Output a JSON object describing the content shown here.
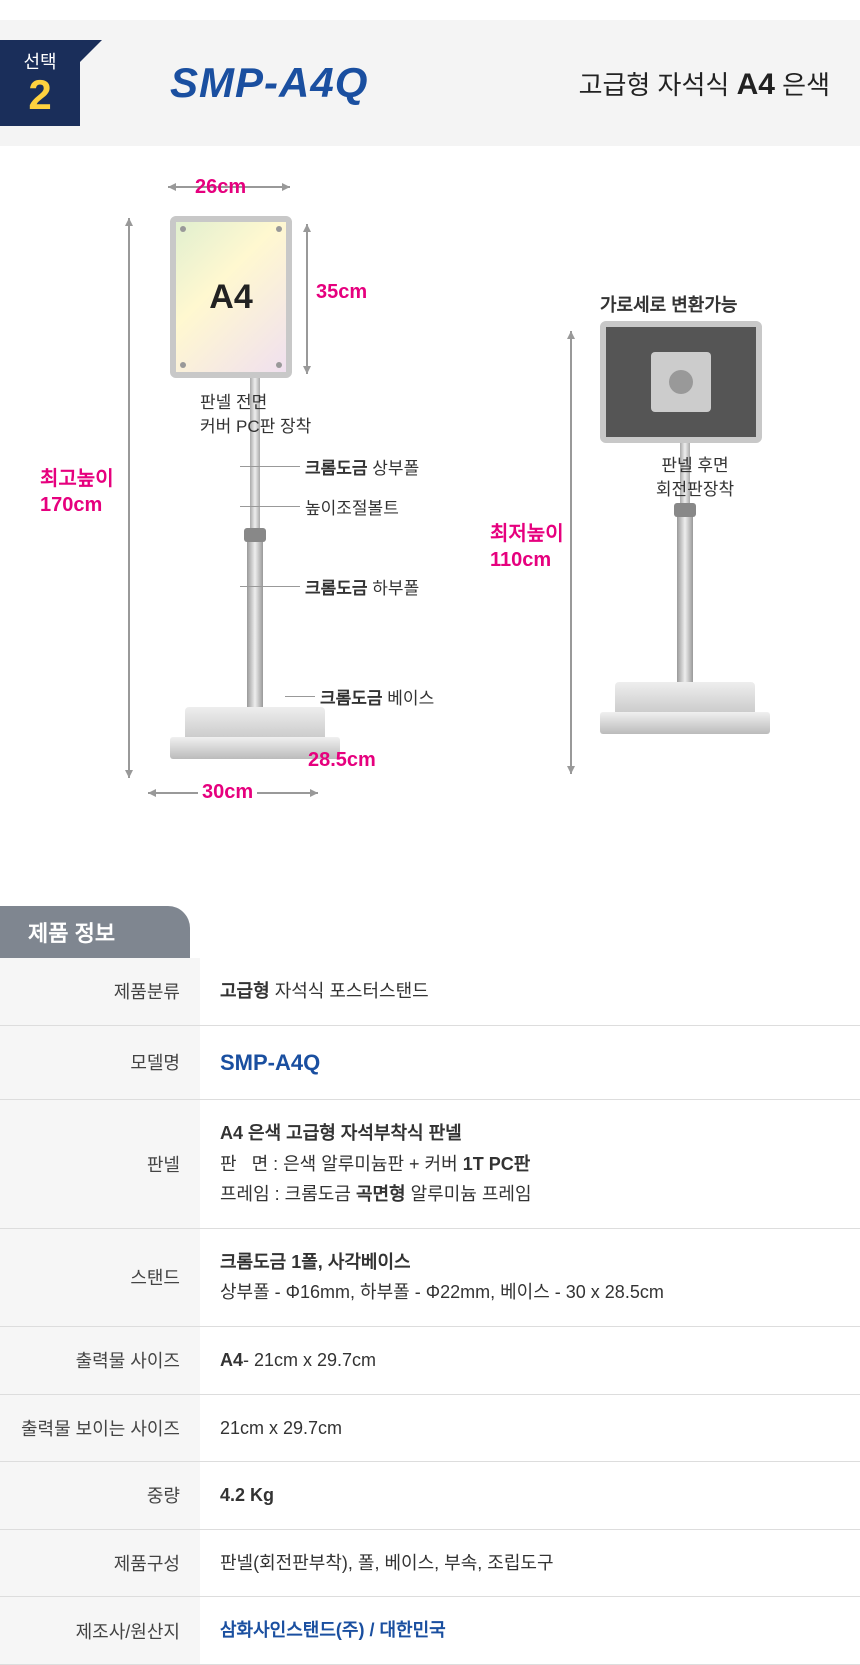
{
  "header": {
    "badge_label": "선택",
    "badge_number": "2",
    "model": "SMP-A4Q",
    "subtitle_prefix": "고급형 자석식",
    "subtitle_size": "A4",
    "subtitle_color": "은색"
  },
  "diagram_left": {
    "panel_size_label": "A4",
    "width_top": "26cm",
    "height_panel": "35cm",
    "max_height_label": "최고높이",
    "max_height_value": "170cm",
    "base_depth": "28.5cm",
    "base_width": "30cm",
    "note_panel_front_1": "판넬 전면",
    "note_panel_front_2": "커버 PC판 장착",
    "callout_upper_bold": "크롬도금",
    "callout_upper_rest": " 상부폴",
    "callout_bolt": "높이조절볼트",
    "callout_lower_bold": "크롬도금",
    "callout_lower_rest": " 하부폴",
    "callout_base_bold": "크롬도금",
    "callout_base_rest": " 베이스"
  },
  "diagram_right": {
    "top_note": "가로세로 변환가능",
    "note_back_1": "판넬 후면",
    "note_back_2": "회전판장착",
    "min_height_label": "최저높이",
    "min_height_value": "110cm"
  },
  "info_header": "제품 정보",
  "spec": {
    "rows": [
      {
        "label": "제품분류",
        "html": "<span class='bold'>고급형</span> 자석식 포스터스탠드"
      },
      {
        "label": "모델명",
        "html": "<span class='model-blue'>SMP-A4Q</span>"
      },
      {
        "label": "판넬",
        "html": "<span class='bold'>A4 은색  고급형 자석부착식 판넬</span><br>판&nbsp;&nbsp;&nbsp;면 : 은색 알루미늄판 + 커버 <span class='bold'>1T PC판</span><br>프레임 : 크롬도금 <span class='bold'>곡면형</span> 알루미늄 프레임"
      },
      {
        "label": "스탠드",
        "html": "<span class='bold'>크롬도금 1폴, 사각베이스</span><br>상부폴 - Φ16mm, 하부폴 - Φ22mm, 베이스 - 30 x 28.5cm"
      },
      {
        "label": "출력물 사이즈",
        "html": "<span class='bold'>A4</span>- 21cm x 29.7cm"
      },
      {
        "label": "출력물 보이는 사이즈",
        "html": "21cm x 29.7cm"
      },
      {
        "label": "중량",
        "html": "<span class='bold'>4.2 Kg</span>"
      },
      {
        "label": "제품구성",
        "html": "판넬(회전판부착), 폴, 베이스, 부속, 조립도구"
      },
      {
        "label": "제조사/원산지",
        "html": "<span class='mfr-blue'>삼화사인스탠드(주) / 대한민국</span>"
      }
    ]
  },
  "colors": {
    "badge_bg": "#1a2e5a",
    "badge_number_color": "#ffd23f",
    "accent_pink": "#e6007e",
    "accent_blue": "#1a4fa0",
    "info_header_bg": "#7f8690"
  }
}
